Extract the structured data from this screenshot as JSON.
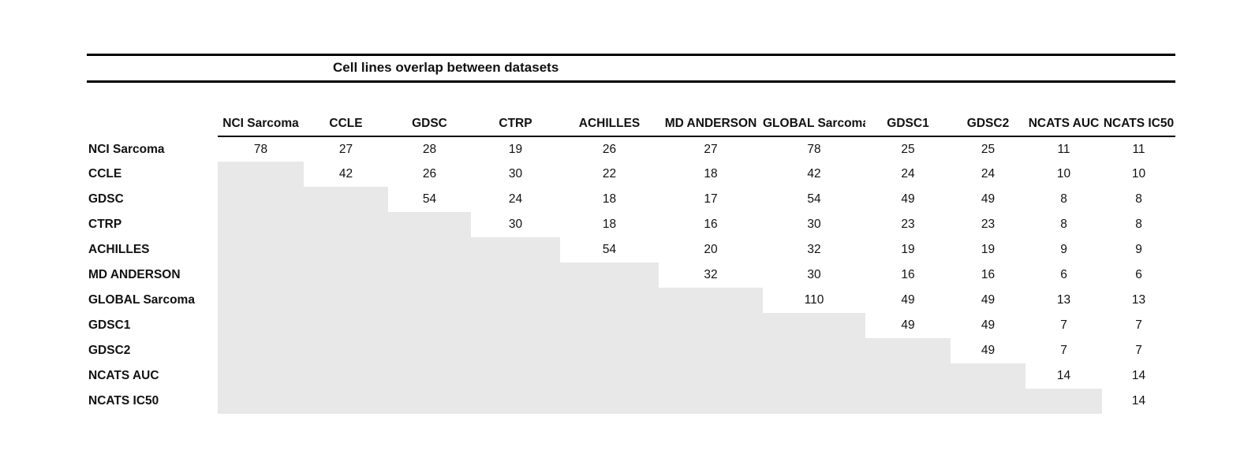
{
  "page": {
    "background": "#ffffff"
  },
  "chart_data": {
    "type": "table",
    "title": "Cell lines overlap between datasets",
    "columns": [
      "NCI Sarcoma",
      "CCLE",
      "GDSC",
      "CTRP",
      "ACHILLES",
      "MD ANDERSON",
      "GLOBAL Sarcoma",
      "GDSC1",
      "GDSC2",
      "NCATS AUC",
      "NCATS IC50"
    ],
    "rows": [
      {
        "label": "NCI Sarcoma",
        "values": [
          78,
          27,
          28,
          19,
          26,
          27,
          78,
          25,
          25,
          11,
          11
        ],
        "bold": [
          0
        ]
      },
      {
        "label": "CCLE",
        "values": [
          null,
          42,
          26,
          30,
          22,
          18,
          42,
          24,
          24,
          10,
          10
        ],
        "bold": [
          1
        ]
      },
      {
        "label": "GDSC",
        "values": [
          null,
          null,
          54,
          24,
          18,
          17,
          54,
          49,
          49,
          8,
          8
        ],
        "bold": [
          2
        ]
      },
      {
        "label": "CTRP",
        "values": [
          null,
          null,
          null,
          30,
          18,
          16,
          30,
          23,
          23,
          8,
          8
        ],
        "bold": [
          3
        ]
      },
      {
        "label": "ACHILLES",
        "values": [
          null,
          null,
          null,
          null,
          54,
          20,
          32,
          19,
          19,
          9,
          9
        ],
        "bold": [
          4
        ]
      },
      {
        "label": "MD ANDERSON",
        "values": [
          null,
          null,
          null,
          null,
          null,
          32,
          30,
          16,
          16,
          6,
          6
        ],
        "bold": [
          5
        ]
      },
      {
        "label": "GLOBAL Sarcoma",
        "values": [
          null,
          null,
          null,
          null,
          null,
          null,
          110,
          49,
          49,
          13,
          13
        ],
        "bold": [
          6
        ]
      },
      {
        "label": "GDSC1",
        "values": [
          null,
          null,
          null,
          null,
          null,
          null,
          null,
          49,
          49,
          7,
          7
        ],
        "bold": [
          7,
          9
        ]
      },
      {
        "label": "GDSC2",
        "values": [
          null,
          null,
          null,
          null,
          null,
          null,
          null,
          null,
          49,
          7,
          7
        ],
        "bold": [
          8,
          10
        ]
      },
      {
        "label": "NCATS AUC",
        "values": [
          null,
          null,
          null,
          null,
          null,
          null,
          null,
          null,
          null,
          14,
          14
        ],
        "bold": [
          9
        ]
      },
      {
        "label": "NCATS IC50",
        "values": [
          null,
          null,
          null,
          null,
          null,
          null,
          null,
          null,
          null,
          null,
          14
        ],
        "bold": [
          10
        ]
      }
    ],
    "shade_color": "#e8e8e8",
    "rule_color": "#000000"
  }
}
